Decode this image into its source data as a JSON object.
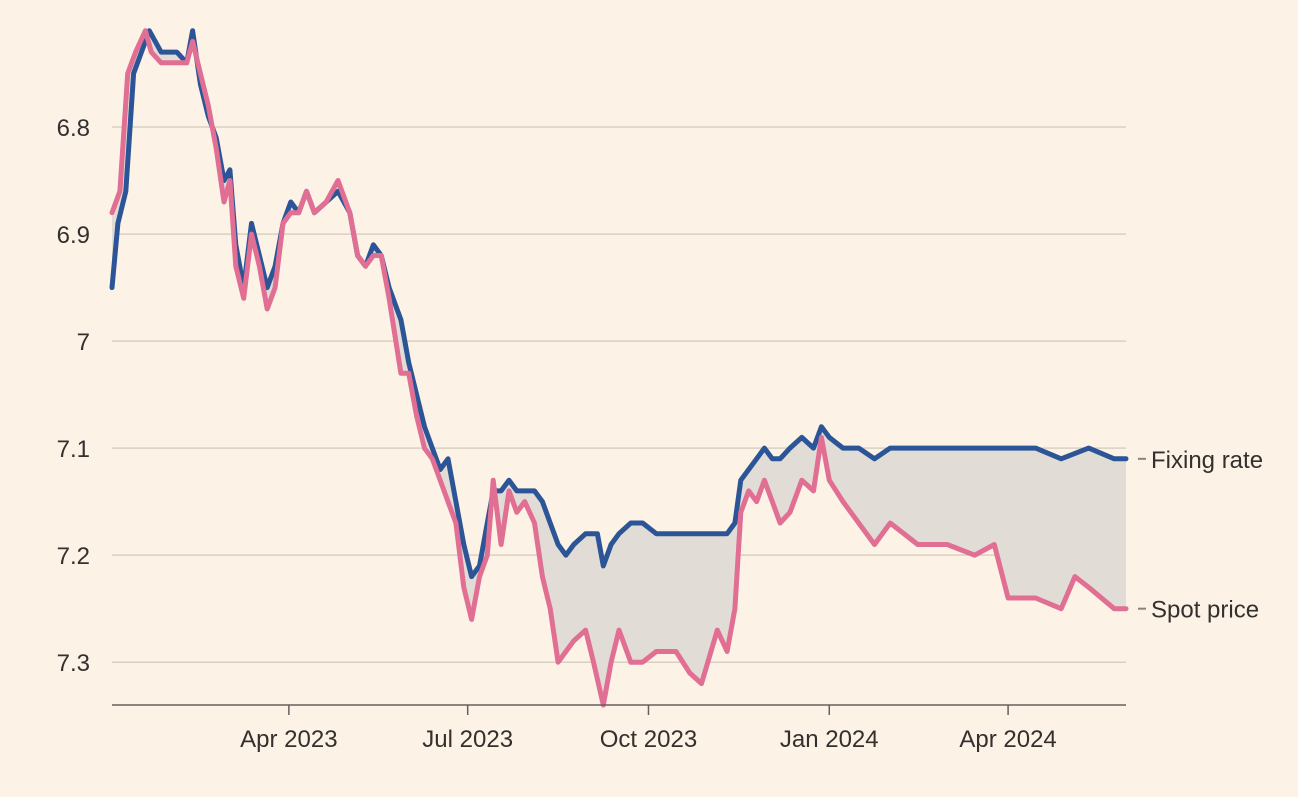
{
  "chart_data": {
    "type": "line",
    "title": "",
    "xlabel": "",
    "ylabel": "",
    "y_inverted": true,
    "ylim": [
      6.7,
      7.34
    ],
    "xlim": [
      "2023-01-01",
      "2024-05-31"
    ],
    "y_ticks": [
      {
        "value": 6.8,
        "label": "6.8"
      },
      {
        "value": 6.9,
        "label": "6.9"
      },
      {
        "value": 7.0,
        "label": "7"
      },
      {
        "value": 7.1,
        "label": "7.1"
      },
      {
        "value": 7.2,
        "label": "7.2"
      },
      {
        "value": 7.3,
        "label": "7.3"
      }
    ],
    "x_ticks": [
      {
        "date": "2023-04-01",
        "label": "Apr 2023"
      },
      {
        "date": "2023-07-01",
        "label": "Jul 2023"
      },
      {
        "date": "2023-10-01",
        "label": "Oct 2023"
      },
      {
        "date": "2024-01-01",
        "label": "Jan 2024"
      },
      {
        "date": "2024-04-01",
        "label": "Apr 2024"
      }
    ],
    "grid": true,
    "shaded_between_series": true,
    "colors": {
      "background": "#fdf2e6",
      "grid": "#d9cfc4",
      "shade": "#e2dcd6",
      "fixing": "#2b5597",
      "spot": "#e06f93",
      "text": "#33302e"
    },
    "series": [
      {
        "name": "Fixing rate",
        "color": "#2b5597",
        "points": [
          [
            "2023-01-01",
            6.95
          ],
          [
            "2023-01-04",
            6.89
          ],
          [
            "2023-01-08",
            6.86
          ],
          [
            "2023-01-12",
            6.75
          ],
          [
            "2023-01-18",
            6.72
          ],
          [
            "2023-01-20",
            6.71
          ],
          [
            "2023-01-26",
            6.73
          ],
          [
            "2023-02-03",
            6.73
          ],
          [
            "2023-02-08",
            6.74
          ],
          [
            "2023-02-11",
            6.71
          ],
          [
            "2023-02-15",
            6.76
          ],
          [
            "2023-02-19",
            6.79
          ],
          [
            "2023-02-23",
            6.81
          ],
          [
            "2023-02-27",
            6.85
          ],
          [
            "2023-03-02",
            6.84
          ],
          [
            "2023-03-05",
            6.91
          ],
          [
            "2023-03-09",
            6.95
          ],
          [
            "2023-03-13",
            6.89
          ],
          [
            "2023-03-17",
            6.92
          ],
          [
            "2023-03-21",
            6.95
          ],
          [
            "2023-03-25",
            6.93
          ],
          [
            "2023-03-29",
            6.89
          ],
          [
            "2023-04-02",
            6.87
          ],
          [
            "2023-04-06",
            6.88
          ],
          [
            "2023-04-10",
            6.86
          ],
          [
            "2023-04-14",
            6.88
          ],
          [
            "2023-04-20",
            6.87
          ],
          [
            "2023-04-26",
            6.86
          ],
          [
            "2023-05-02",
            6.88
          ],
          [
            "2023-05-06",
            6.92
          ],
          [
            "2023-05-10",
            6.93
          ],
          [
            "2023-05-14",
            6.91
          ],
          [
            "2023-05-18",
            6.92
          ],
          [
            "2023-05-22",
            6.95
          ],
          [
            "2023-05-28",
            6.98
          ],
          [
            "2023-06-01",
            7.02
          ],
          [
            "2023-06-05",
            7.05
          ],
          [
            "2023-06-09",
            7.08
          ],
          [
            "2023-06-13",
            7.1
          ],
          [
            "2023-06-17",
            7.12
          ],
          [
            "2023-06-21",
            7.11
          ],
          [
            "2023-06-25",
            7.15
          ],
          [
            "2023-06-29",
            7.19
          ],
          [
            "2023-07-03",
            7.22
          ],
          [
            "2023-07-07",
            7.21
          ],
          [
            "2023-07-11",
            7.17
          ],
          [
            "2023-07-14",
            7.14
          ],
          [
            "2023-07-18",
            7.14
          ],
          [
            "2023-07-22",
            7.13
          ],
          [
            "2023-07-26",
            7.14
          ],
          [
            "2023-07-30",
            7.14
          ],
          [
            "2023-08-04",
            7.14
          ],
          [
            "2023-08-08",
            7.15
          ],
          [
            "2023-08-12",
            7.17
          ],
          [
            "2023-08-16",
            7.19
          ],
          [
            "2023-08-20",
            7.2
          ],
          [
            "2023-08-24",
            7.19
          ],
          [
            "2023-08-30",
            7.18
          ],
          [
            "2023-09-05",
            7.18
          ],
          [
            "2023-09-08",
            7.21
          ],
          [
            "2023-09-12",
            7.19
          ],
          [
            "2023-09-16",
            7.18
          ],
          [
            "2023-09-22",
            7.17
          ],
          [
            "2023-09-28",
            7.17
          ],
          [
            "2023-10-05",
            7.18
          ],
          [
            "2023-10-15",
            7.18
          ],
          [
            "2023-10-25",
            7.18
          ],
          [
            "2023-11-05",
            7.18
          ],
          [
            "2023-11-10",
            7.18
          ],
          [
            "2023-11-14",
            7.17
          ],
          [
            "2023-11-17",
            7.13
          ],
          [
            "2023-11-21",
            7.12
          ],
          [
            "2023-11-25",
            7.11
          ],
          [
            "2023-11-29",
            7.1
          ],
          [
            "2023-12-03",
            7.11
          ],
          [
            "2023-12-07",
            7.11
          ],
          [
            "2023-12-12",
            7.1
          ],
          [
            "2023-12-18",
            7.09
          ],
          [
            "2023-12-24",
            7.1
          ],
          [
            "2023-12-28",
            7.08
          ],
          [
            "2024-01-01",
            7.09
          ],
          [
            "2024-01-08",
            7.1
          ],
          [
            "2024-01-16",
            7.1
          ],
          [
            "2024-01-24",
            7.11
          ],
          [
            "2024-02-01",
            7.1
          ],
          [
            "2024-02-15",
            7.1
          ],
          [
            "2024-03-01",
            7.1
          ],
          [
            "2024-03-15",
            7.1
          ],
          [
            "2024-04-01",
            7.1
          ],
          [
            "2024-04-15",
            7.1
          ],
          [
            "2024-04-28",
            7.11
          ],
          [
            "2024-05-12",
            7.1
          ],
          [
            "2024-05-25",
            7.11
          ],
          [
            "2024-05-31",
            7.11
          ]
        ]
      },
      {
        "name": "Spot price",
        "color": "#e06f93",
        "points": [
          [
            "2023-01-01",
            6.88
          ],
          [
            "2023-01-05",
            6.86
          ],
          [
            "2023-01-09",
            6.75
          ],
          [
            "2023-01-13",
            6.73
          ],
          [
            "2023-01-18",
            6.71
          ],
          [
            "2023-01-21",
            6.73
          ],
          [
            "2023-01-26",
            6.74
          ],
          [
            "2023-02-03",
            6.74
          ],
          [
            "2023-02-08",
            6.74
          ],
          [
            "2023-02-11",
            6.72
          ],
          [
            "2023-02-15",
            6.75
          ],
          [
            "2023-02-19",
            6.78
          ],
          [
            "2023-02-23",
            6.82
          ],
          [
            "2023-02-27",
            6.87
          ],
          [
            "2023-03-02",
            6.85
          ],
          [
            "2023-03-05",
            6.93
          ],
          [
            "2023-03-09",
            6.96
          ],
          [
            "2023-03-13",
            6.9
          ],
          [
            "2023-03-17",
            6.93
          ],
          [
            "2023-03-21",
            6.97
          ],
          [
            "2023-03-25",
            6.95
          ],
          [
            "2023-03-29",
            6.89
          ],
          [
            "2023-04-02",
            6.88
          ],
          [
            "2023-04-06",
            6.88
          ],
          [
            "2023-04-10",
            6.86
          ],
          [
            "2023-04-14",
            6.88
          ],
          [
            "2023-04-20",
            6.87
          ],
          [
            "2023-04-26",
            6.85
          ],
          [
            "2023-05-02",
            6.88
          ],
          [
            "2023-05-06",
            6.92
          ],
          [
            "2023-05-10",
            6.93
          ],
          [
            "2023-05-14",
            6.92
          ],
          [
            "2023-05-18",
            6.92
          ],
          [
            "2023-05-22",
            6.96
          ],
          [
            "2023-05-28",
            7.03
          ],
          [
            "2023-06-01",
            7.03
          ],
          [
            "2023-06-05",
            7.07
          ],
          [
            "2023-06-09",
            7.1
          ],
          [
            "2023-06-13",
            7.11
          ],
          [
            "2023-06-17",
            7.13
          ],
          [
            "2023-06-21",
            7.15
          ],
          [
            "2023-06-25",
            7.17
          ],
          [
            "2023-06-29",
            7.23
          ],
          [
            "2023-07-03",
            7.26
          ],
          [
            "2023-07-07",
            7.22
          ],
          [
            "2023-07-11",
            7.2
          ],
          [
            "2023-07-14",
            7.13
          ],
          [
            "2023-07-18",
            7.19
          ],
          [
            "2023-07-22",
            7.14
          ],
          [
            "2023-07-26",
            7.16
          ],
          [
            "2023-07-30",
            7.15
          ],
          [
            "2023-08-04",
            7.17
          ],
          [
            "2023-08-08",
            7.22
          ],
          [
            "2023-08-12",
            7.25
          ],
          [
            "2023-08-16",
            7.3
          ],
          [
            "2023-08-20",
            7.29
          ],
          [
            "2023-08-24",
            7.28
          ],
          [
            "2023-08-30",
            7.27
          ],
          [
            "2023-09-03",
            7.3
          ],
          [
            "2023-09-08",
            7.34
          ],
          [
            "2023-09-12",
            7.3
          ],
          [
            "2023-09-16",
            7.27
          ],
          [
            "2023-09-22",
            7.3
          ],
          [
            "2023-09-28",
            7.3
          ],
          [
            "2023-10-05",
            7.29
          ],
          [
            "2023-10-15",
            7.29
          ],
          [
            "2023-10-22",
            7.31
          ],
          [
            "2023-10-28",
            7.32
          ],
          [
            "2023-11-05",
            7.27
          ],
          [
            "2023-11-10",
            7.29
          ],
          [
            "2023-11-14",
            7.25
          ],
          [
            "2023-11-17",
            7.16
          ],
          [
            "2023-11-21",
            7.14
          ],
          [
            "2023-11-25",
            7.15
          ],
          [
            "2023-11-29",
            7.13
          ],
          [
            "2023-12-03",
            7.15
          ],
          [
            "2023-12-07",
            7.17
          ],
          [
            "2023-12-12",
            7.16
          ],
          [
            "2023-12-18",
            7.13
          ],
          [
            "2023-12-24",
            7.14
          ],
          [
            "2023-12-28",
            7.09
          ],
          [
            "2024-01-01",
            7.13
          ],
          [
            "2024-01-08",
            7.15
          ],
          [
            "2024-01-16",
            7.17
          ],
          [
            "2024-01-24",
            7.19
          ],
          [
            "2024-02-01",
            7.17
          ],
          [
            "2024-02-15",
            7.19
          ],
          [
            "2024-03-01",
            7.19
          ],
          [
            "2024-03-15",
            7.2
          ],
          [
            "2024-03-25",
            7.19
          ],
          [
            "2024-04-01",
            7.24
          ],
          [
            "2024-04-15",
            7.24
          ],
          [
            "2024-04-28",
            7.25
          ],
          [
            "2024-05-05",
            7.22
          ],
          [
            "2024-05-12",
            7.23
          ],
          [
            "2024-05-25",
            7.25
          ],
          [
            "2024-05-31",
            7.25
          ]
        ]
      }
    ]
  }
}
